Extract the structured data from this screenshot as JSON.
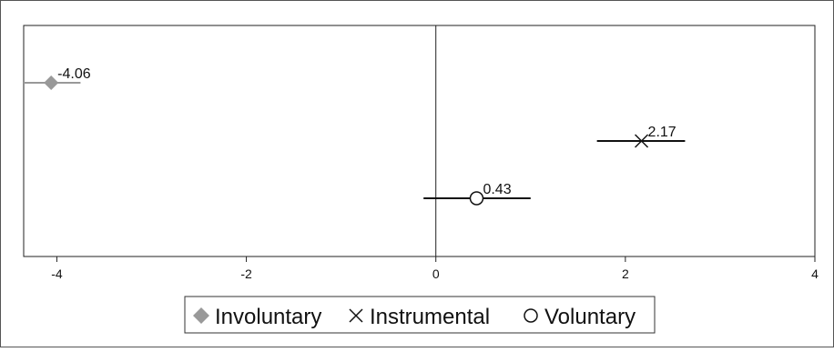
{
  "chart_data": {
    "type": "scatter",
    "subtype": "forest-plot",
    "series": [
      {
        "name": "Involuntary",
        "marker": "diamond",
        "color": "#999999",
        "estimate": -4.06,
        "ci": [
          -4.35,
          -3.75
        ],
        "label": "-4.06"
      },
      {
        "name": "Instrumental",
        "marker": "cross",
        "color": "#111111",
        "estimate": 2.17,
        "ci": [
          1.7,
          2.63
        ],
        "label": "2.17"
      },
      {
        "name": "Voluntary",
        "marker": "circle",
        "color": "#111111",
        "estimate": 0.43,
        "ci": [
          -0.13,
          1.0
        ],
        "label": "0.43"
      }
    ],
    "xlim": [
      -4.35,
      4.0
    ],
    "xticks": [
      -4,
      -2,
      0,
      2,
      4
    ],
    "xtick_labels": [
      "-4",
      "-2",
      "0",
      "2",
      "4"
    ],
    "reference_line": 0,
    "grid": false,
    "legend_position": "bottom",
    "title": "",
    "xlabel": "",
    "ylabel": ""
  }
}
